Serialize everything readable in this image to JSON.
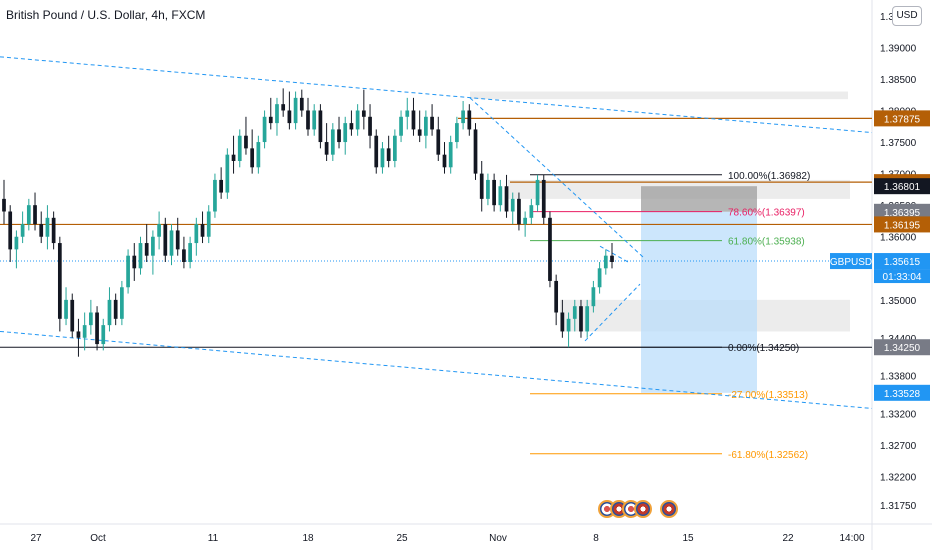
{
  "header": {
    "title": "British Pound / U.S. Dollar, 4h, FXCM",
    "currency": "USD"
  },
  "chart_data": {
    "type": "candlestick",
    "symbol": "GBPUSD",
    "ylim": [
      1.3145,
      1.3975
    ],
    "y_ticks": [
      "1.39500",
      "1.39000",
      "1.38500",
      "1.38000",
      "1.37500",
      "1.37000",
      "1.36500",
      "1.36000",
      "1.35500",
      "1.35000",
      "1.34400",
      "1.33800",
      "1.33200",
      "1.32700",
      "1.32200",
      "1.31750"
    ],
    "x_ticks": [
      "27",
      "Oct",
      "11",
      "18",
      "25",
      "Nov",
      "8",
      "15",
      "22",
      "14:00"
    ],
    "price_labels": [
      {
        "text": "1.37875",
        "value": 1.37875,
        "color": "#b45f06"
      },
      {
        "text": "1.36865",
        "value": 1.36865,
        "color": "#b45f06"
      },
      {
        "text": "1.36801",
        "value": 1.36801,
        "color": "#131722"
      },
      {
        "text": "1.36395",
        "value": 1.36395,
        "color": "#787b86"
      },
      {
        "text": "1.36195",
        "value": 1.36195,
        "color": "#b45f06"
      },
      {
        "text": "1.35615",
        "value": 1.35615,
        "color": "#2196f3"
      },
      {
        "text": "1.34250",
        "value": 1.3425,
        "color": "#787b86"
      },
      {
        "text": "1.33528",
        "value": 1.33528,
        "color": "#2196f3"
      }
    ],
    "current_price": {
      "symbol_label": "GBPUSD",
      "price": "1.35615",
      "countdown": "01:33:04"
    },
    "fib_levels": [
      {
        "label": "100.00%(1.36982)",
        "value": 1.36982,
        "color": "#131722"
      },
      {
        "label": "78.60%(1.36397)",
        "value": 1.36397,
        "color": "#e91e63"
      },
      {
        "label": "61.80%(1.35938)",
        "value": 1.35938,
        "color": "#4caf50"
      },
      {
        "label": "0.00%(1.34250)",
        "value": 1.3425,
        "color": "#131722"
      },
      {
        "label": "-27.00%(1.33513)",
        "value": 1.33513,
        "color": "#ff9800"
      },
      {
        "label": "-61.80%(1.32562)",
        "value": 1.32562,
        "color": "#ff9800"
      }
    ],
    "horizontal_lines": [
      {
        "value": 1.37875,
        "color": "#b45f06"
      },
      {
        "value": 1.36865,
        "color": "#b45f06"
      },
      {
        "value": 1.36195,
        "color": "#b45f06"
      },
      {
        "value": 1.3425,
        "color": "#131722"
      }
    ],
    "colors": {
      "up": "#26a69a",
      "down": "#131722",
      "trend": "#2196f3",
      "position_target": "#bbdefb",
      "position_stop": "#9e9e9e",
      "zone": "#e0e0e0"
    },
    "candles": [
      [
        1.366,
        1.369,
        1.362,
        1.364
      ],
      [
        1.364,
        1.365,
        1.356,
        1.358
      ],
      [
        1.358,
        1.361,
        1.355,
        1.36
      ],
      [
        1.36,
        1.364,
        1.359,
        1.362
      ],
      [
        1.362,
        1.366,
        1.361,
        1.365
      ],
      [
        1.365,
        1.367,
        1.361,
        1.362
      ],
      [
        1.362,
        1.364,
        1.359,
        1.36
      ],
      [
        1.36,
        1.365,
        1.358,
        1.363
      ],
      [
        1.363,
        1.364,
        1.358,
        1.359
      ],
      [
        1.359,
        1.36,
        1.345,
        1.347
      ],
      [
        1.347,
        1.352,
        1.346,
        1.35
      ],
      [
        1.35,
        1.351,
        1.344,
        1.345
      ],
      [
        1.345,
        1.347,
        1.341,
        1.344
      ],
      [
        1.344,
        1.348,
        1.342,
        1.346
      ],
      [
        1.346,
        1.35,
        1.3445,
        1.348
      ],
      [
        1.348,
        1.349,
        1.342,
        1.343
      ],
      [
        1.343,
        1.347,
        1.342,
        1.346
      ],
      [
        1.346,
        1.352,
        1.345,
        1.35
      ],
      [
        1.35,
        1.351,
        1.346,
        1.347
      ],
      [
        1.347,
        1.353,
        1.346,
        1.352
      ],
      [
        1.352,
        1.358,
        1.351,
        1.357
      ],
      [
        1.357,
        1.359,
        1.353,
        1.355
      ],
      [
        1.355,
        1.36,
        1.354,
        1.359
      ],
      [
        1.359,
        1.362,
        1.356,
        1.357
      ],
      [
        1.357,
        1.361,
        1.354,
        1.36
      ],
      [
        1.36,
        1.364,
        1.358,
        1.362
      ],
      [
        1.362,
        1.363,
        1.356,
        1.357
      ],
      [
        1.357,
        1.362,
        1.3555,
        1.361
      ],
      [
        1.361,
        1.363,
        1.357,
        1.358
      ],
      [
        1.358,
        1.36,
        1.355,
        1.356
      ],
      [
        1.356,
        1.36,
        1.355,
        1.359
      ],
      [
        1.359,
        1.363,
        1.357,
        1.362
      ],
      [
        1.362,
        1.364,
        1.359,
        1.36
      ],
      [
        1.36,
        1.365,
        1.359,
        1.364
      ],
      [
        1.364,
        1.37,
        1.363,
        1.369
      ],
      [
        1.369,
        1.371,
        1.366,
        1.367
      ],
      [
        1.367,
        1.374,
        1.366,
        1.373
      ],
      [
        1.373,
        1.376,
        1.37,
        1.372
      ],
      [
        1.372,
        1.377,
        1.371,
        1.376
      ],
      [
        1.376,
        1.379,
        1.373,
        1.374
      ],
      [
        1.374,
        1.377,
        1.37,
        1.371
      ],
      [
        1.371,
        1.376,
        1.37,
        1.375
      ],
      [
        1.375,
        1.38,
        1.374,
        1.379
      ],
      [
        1.379,
        1.382,
        1.377,
        1.378
      ],
      [
        1.378,
        1.382,
        1.376,
        1.381
      ],
      [
        1.381,
        1.3835,
        1.379,
        1.38
      ],
      [
        1.38,
        1.383,
        1.377,
        1.378
      ],
      [
        1.378,
        1.383,
        1.377,
        1.382
      ],
      [
        1.382,
        1.3833,
        1.379,
        1.38
      ],
      [
        1.38,
        1.382,
        1.376,
        1.377
      ],
      [
        1.377,
        1.381,
        1.376,
        1.38
      ],
      [
        1.38,
        1.381,
        1.374,
        1.375
      ],
      [
        1.375,
        1.378,
        1.372,
        1.373
      ],
      [
        1.373,
        1.378,
        1.372,
        1.377
      ],
      [
        1.377,
        1.379,
        1.374,
        1.375
      ],
      [
        1.375,
        1.379,
        1.373,
        1.378
      ],
      [
        1.378,
        1.38,
        1.376,
        1.377
      ],
      [
        1.377,
        1.381,
        1.376,
        1.38
      ],
      [
        1.38,
        1.3833,
        1.377,
        1.379
      ],
      [
        1.379,
        1.381,
        1.374,
        1.376
      ],
      [
        1.376,
        1.377,
        1.37,
        1.371
      ],
      [
        1.371,
        1.375,
        1.37,
        1.374
      ],
      [
        1.374,
        1.376,
        1.371,
        1.372
      ],
      [
        1.372,
        1.377,
        1.371,
        1.376
      ],
      [
        1.376,
        1.38,
        1.375,
        1.379
      ],
      [
        1.379,
        1.382,
        1.377,
        1.38
      ],
      [
        1.38,
        1.382,
        1.376,
        1.377
      ],
      [
        1.377,
        1.38,
        1.375,
        1.376
      ],
      [
        1.376,
        1.38,
        1.374,
        1.379
      ],
      [
        1.379,
        1.381,
        1.376,
        1.377
      ],
      [
        1.377,
        1.379,
        1.372,
        1.373
      ],
      [
        1.373,
        1.375,
        1.37,
        1.371
      ],
      [
        1.371,
        1.376,
        1.37,
        1.375
      ],
      [
        1.375,
        1.379,
        1.374,
        1.378
      ],
      [
        1.378,
        1.3815,
        1.377,
        1.38
      ],
      [
        1.38,
        1.381,
        1.376,
        1.377
      ],
      [
        1.377,
        1.378,
        1.369,
        1.37
      ],
      [
        1.37,
        1.372,
        1.364,
        1.366
      ],
      [
        1.366,
        1.37,
        1.365,
        1.369
      ],
      [
        1.369,
        1.37,
        1.364,
        1.365
      ],
      [
        1.365,
        1.369,
        1.364,
        1.368
      ],
      [
        1.368,
        1.3698,
        1.363,
        1.364
      ],
      [
        1.364,
        1.367,
        1.362,
        1.366
      ],
      [
        1.366,
        1.367,
        1.361,
        1.362
      ],
      [
        1.362,
        1.364,
        1.36,
        1.363
      ],
      [
        1.363,
        1.366,
        1.362,
        1.365
      ],
      [
        1.365,
        1.3698,
        1.364,
        1.369
      ],
      [
        1.369,
        1.3698,
        1.362,
        1.363
      ],
      [
        1.363,
        1.364,
        1.352,
        1.353
      ],
      [
        1.353,
        1.354,
        1.346,
        1.348
      ],
      [
        1.348,
        1.35,
        1.344,
        1.345
      ],
      [
        1.345,
        1.348,
        1.3425,
        1.347
      ],
      [
        1.347,
        1.35,
        1.345,
        1.349
      ],
      [
        1.349,
        1.35,
        1.344,
        1.345
      ],
      [
        1.345,
        1.35,
        1.344,
        1.349
      ],
      [
        1.349,
        1.353,
        1.348,
        1.352
      ],
      [
        1.352,
        1.356,
        1.351,
        1.355
      ],
      [
        1.355,
        1.358,
        1.354,
        1.357
      ],
      [
        1.357,
        1.359,
        1.355,
        1.356
      ]
    ]
  }
}
